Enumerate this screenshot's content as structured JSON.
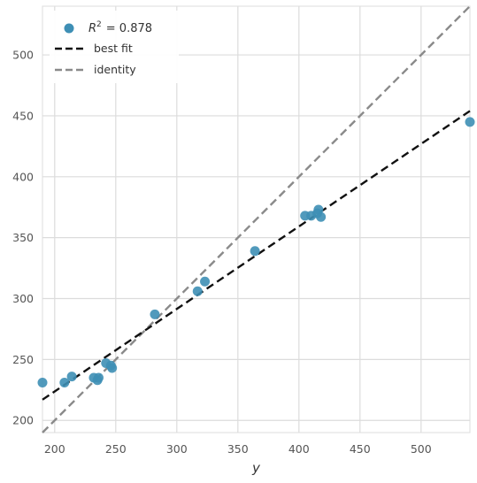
{
  "chart_data": {
    "type": "scatter",
    "title": "",
    "xlabel": "y",
    "ylabel": "",
    "xlim": [
      190,
      540
    ],
    "ylim": [
      190,
      540
    ],
    "x_ticks": [
      200,
      250,
      300,
      350,
      400,
      450,
      500
    ],
    "y_ticks": [
      200,
      250,
      300,
      350,
      400,
      450,
      500
    ],
    "grid": true,
    "legend_placement": "top-left",
    "legend": {
      "r2_label": "R",
      "r2_superscript": "2",
      "r2_value_text": "= 0.878",
      "best_fit_label": "best fit",
      "identity_label": "identity"
    },
    "colors": {
      "points": "#3e8fb5",
      "best_fit": "#111111",
      "identity": "#8a8a8a",
      "grid": "#dcdcdc",
      "text": "#555555"
    },
    "best_fit_line": {
      "x": [
        190,
        540
      ],
      "y": [
        217,
        454
      ]
    },
    "identity_line": {
      "x": [
        190,
        540
      ],
      "y": [
        190,
        540
      ]
    },
    "points": [
      {
        "x": 190,
        "y": 231
      },
      {
        "x": 208,
        "y": 231
      },
      {
        "x": 214,
        "y": 236
      },
      {
        "x": 232,
        "y": 235
      },
      {
        "x": 235,
        "y": 233
      },
      {
        "x": 236,
        "y": 235
      },
      {
        "x": 242,
        "y": 247
      },
      {
        "x": 246,
        "y": 245
      },
      {
        "x": 247,
        "y": 243
      },
      {
        "x": 282,
        "y": 287
      },
      {
        "x": 317,
        "y": 306
      },
      {
        "x": 323,
        "y": 314
      },
      {
        "x": 364,
        "y": 339
      },
      {
        "x": 405,
        "y": 368
      },
      {
        "x": 410,
        "y": 368
      },
      {
        "x": 415,
        "y": 370
      },
      {
        "x": 416,
        "y": 373
      },
      {
        "x": 418,
        "y": 367
      },
      {
        "x": 540,
        "y": 445
      }
    ]
  }
}
